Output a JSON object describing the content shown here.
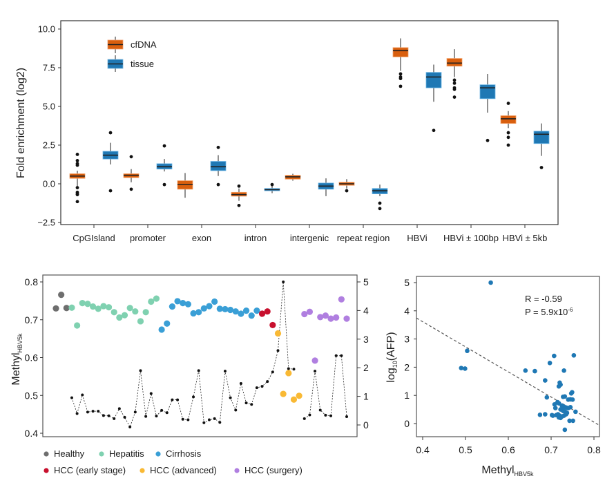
{
  "chart_data": [
    {
      "type": "box",
      "title": "",
      "xlabel": "",
      "ylabel": "Fold enrichment (log2)",
      "ylim": [
        -2.5,
        10.0
      ],
      "yticks": [
        "10.0",
        "7.5",
        "5.0",
        "2.5",
        "0.0",
        "−2.5"
      ],
      "ytick_values": [
        10.0,
        7.5,
        5.0,
        2.5,
        0.0,
        -2.5
      ],
      "grid": false,
      "legend_position": "top-left",
      "categories": [
        "CpGIsland",
        "promoter",
        "exon",
        "intron",
        "intergenic",
        "repeat region",
        "HBVi",
        "HBVi ± 100bp",
        "HBVi ± 5kb"
      ],
      "series": [
        {
          "name": "cfDNA",
          "color": "#d95f0e",
          "boxes": [
            {
              "whisker_low": -0.3,
              "q1": 0.35,
              "median": 0.5,
              "q3": 0.65,
              "whisker_high": 0.85,
              "outliers": [
                1.9,
                1.5,
                1.3,
                1.2,
                -0.25,
                -0.55,
                -0.65,
                -0.7,
                -1.15
              ]
            },
            {
              "whisker_low": 0.1,
              "q1": 0.4,
              "median": 0.55,
              "q3": 0.65,
              "whisker_high": 0.95,
              "outliers": [
                1.75,
                -0.35
              ]
            },
            {
              "whisker_low": -0.9,
              "q1": -0.35,
              "median": -0.05,
              "q3": 0.2,
              "whisker_high": 0.7,
              "outliers": []
            },
            {
              "whisker_low": -1.1,
              "q1": -0.8,
              "median": -0.7,
              "q3": -0.55,
              "whisker_high": -0.3,
              "outliers": [
                -0.15,
                -1.4
              ]
            },
            {
              "whisker_low": 0.2,
              "q1": 0.3,
              "median": 0.45,
              "q3": 0.55,
              "whisker_high": 0.65,
              "outliers": []
            },
            {
              "whisker_low": -0.3,
              "q1": -0.1,
              "median": 0.0,
              "q3": 0.1,
              "whisker_high": 0.3,
              "outliers": [
                -0.45
              ]
            },
            {
              "whisker_low": 7.3,
              "q1": 8.2,
              "median": 8.6,
              "q3": 8.8,
              "whisker_high": 9.4,
              "outliers": [
                7.1,
                6.9,
                6.8,
                6.3
              ]
            },
            {
              "whisker_low": 6.9,
              "q1": 7.6,
              "median": 7.8,
              "q3": 8.1,
              "whisker_high": 8.7,
              "outliers": [
                6.7,
                6.5,
                6.2,
                6.1,
                5.6
              ]
            },
            {
              "whisker_low": 3.6,
              "q1": 3.9,
              "median": 4.2,
              "q3": 4.4,
              "whisker_high": 4.7,
              "outliers": [
                5.2,
                3.3,
                3.0,
                2.5
              ]
            }
          ]
        },
        {
          "name": "tissue",
          "color": "#1f78b4",
          "boxes": [
            {
              "whisker_low": 1.25,
              "q1": 1.6,
              "median": 1.85,
              "q3": 2.1,
              "whisker_high": 2.65,
              "outliers": [
                3.3,
                -0.45
              ]
            },
            {
              "whisker_low": 0.8,
              "q1": 0.95,
              "median": 1.1,
              "q3": 1.3,
              "whisker_high": 1.6,
              "outliers": [
                2.45,
                -0.05
              ]
            },
            {
              "whisker_low": 0.5,
              "q1": 0.85,
              "median": 1.1,
              "q3": 1.45,
              "whisker_high": 1.85,
              "outliers": [
                2.35,
                -0.05
              ]
            },
            {
              "whisker_low": -0.6,
              "q1": -0.45,
              "median": -0.38,
              "q3": -0.3,
              "whisker_high": -0.15,
              "outliers": [
                -0.05
              ]
            },
            {
              "whisker_low": -0.8,
              "q1": -0.35,
              "median": -0.15,
              "q3": 0.05,
              "whisker_high": 0.35,
              "outliers": []
            },
            {
              "whisker_low": -0.8,
              "q1": -0.65,
              "median": -0.45,
              "q3": -0.3,
              "whisker_high": -0.05,
              "outliers": [
                -1.25,
                -1.6
              ]
            },
            {
              "whisker_low": 5.3,
              "q1": 6.2,
              "median": 6.9,
              "q3": 7.2,
              "whisker_high": 7.7,
              "outliers": [
                3.45
              ]
            },
            {
              "whisker_low": 4.6,
              "q1": 5.5,
              "median": 6.2,
              "q3": 6.4,
              "whisker_high": 7.1,
              "outliers": [
                2.8
              ]
            },
            {
              "whisker_low": 1.8,
              "q1": 2.6,
              "median": 3.2,
              "q3": 3.4,
              "whisker_high": 3.9,
              "outliers": [
                1.05
              ]
            }
          ]
        }
      ]
    },
    {
      "type": "scatter",
      "title": "",
      "ylabel": "Methyl",
      "ylabel_subscript": "HBV5k",
      "ylim": [
        0.4,
        0.8
      ],
      "yticks": [
        "0.8",
        "0.7",
        "0.6",
        "0.5",
        "0.4"
      ],
      "ytick_values": [
        0.8,
        0.7,
        0.6,
        0.5,
        0.4
      ],
      "y2lim": [
        0,
        5
      ],
      "y2ticks": [
        "5",
        "4",
        "3",
        "2",
        "1",
        "0"
      ],
      "y2tick_values": [
        5,
        4,
        3,
        2,
        1,
        0
      ],
      "grid": false,
      "legend_position": "bottom",
      "groups": [
        {
          "name": "Healthy",
          "color": "#6e6e6e"
        },
        {
          "name": "Hepatitis",
          "color": "#7fd1b0"
        },
        {
          "name": "Cirrhosis",
          "color": "#3a9fd6"
        },
        {
          "name": "HCC (early stage)",
          "color": "#c8102e"
        },
        {
          "name": "HCC (advanced)",
          "color": "#f9b934"
        },
        {
          "name": "HCC (surgery)",
          "color": "#b07fe0"
        }
      ],
      "samples": [
        {
          "group": 0,
          "methyl": 0.73,
          "afp": null
        },
        {
          "group": 0,
          "methyl": 0.766,
          "afp": null
        },
        {
          "group": 0,
          "methyl": 0.731,
          "afp": null
        },
        {
          "group": 1,
          "methyl": 0.732,
          "afp": 0.95
        },
        {
          "group": 1,
          "methyl": 0.685,
          "afp": 0.4
        },
        {
          "group": 1,
          "methyl": 0.744,
          "afp": 1.05
        },
        {
          "group": 1,
          "methyl": 0.742,
          "afp": 0.45
        },
        {
          "group": 1,
          "methyl": 0.735,
          "afp": 0.48
        },
        {
          "group": 1,
          "methyl": 0.729,
          "afp": 0.48
        },
        {
          "group": 1,
          "methyl": 0.736,
          "afp": 0.33
        },
        {
          "group": 1,
          "methyl": 0.733,
          "afp": 0.32
        },
        {
          "group": 1,
          "methyl": 0.72,
          "afp": 0.22
        },
        {
          "group": 1,
          "methyl": 0.706,
          "afp": 0.57
        },
        {
          "group": 1,
          "methyl": 0.712,
          "afp": 0.27
        },
        {
          "group": 1,
          "methyl": 0.731,
          "afp": -0.07
        },
        {
          "group": 1,
          "methyl": 0.722,
          "afp": 0.45
        },
        {
          "group": 1,
          "methyl": 0.696,
          "afp": 1.9
        },
        {
          "group": 1,
          "methyl": 0.72,
          "afp": 0.3
        },
        {
          "group": 1,
          "methyl": 0.748,
          "afp": 1.1
        },
        {
          "group": 1,
          "methyl": 0.756,
          "afp": 0.31
        },
        {
          "group": 2,
          "methyl": 0.674,
          "afp": 0.51
        },
        {
          "group": 2,
          "methyl": 0.69,
          "afp": 0.43
        },
        {
          "group": 2,
          "methyl": 0.735,
          "afp": 0.88
        },
        {
          "group": 2,
          "methyl": 0.749,
          "afp": 0.88
        },
        {
          "group": 2,
          "methyl": 0.744,
          "afp": 0.2
        },
        {
          "group": 2,
          "methyl": 0.741,
          "afp": 0.18
        },
        {
          "group": 2,
          "methyl": 0.717,
          "afp": 0.98
        },
        {
          "group": 2,
          "methyl": 0.72,
          "afp": 1.9
        },
        {
          "group": 2,
          "methyl": 0.73,
          "afp": 0.08
        },
        {
          "group": 2,
          "methyl": 0.736,
          "afp": 0.18
        },
        {
          "group": 2,
          "methyl": 0.748,
          "afp": 0.22
        },
        {
          "group": 2,
          "methyl": 0.729,
          "afp": 0.09
        },
        {
          "group": 2,
          "methyl": 0.728,
          "afp": 1.88
        },
        {
          "group": 2,
          "methyl": 0.726,
          "afp": 0.95
        },
        {
          "group": 2,
          "methyl": 0.722,
          "afp": 0.52
        },
        {
          "group": 2,
          "methyl": 0.716,
          "afp": 1.45
        },
        {
          "group": 2,
          "methyl": 0.724,
          "afp": 0.77
        },
        {
          "group": 2,
          "methyl": 0.711,
          "afp": 0.72
        },
        {
          "group": 2,
          "methyl": 0.724,
          "afp": 1.3
        },
        {
          "group": 3,
          "methyl": 0.716,
          "afp": 1.35
        },
        {
          "group": 3,
          "methyl": 0.722,
          "afp": 1.52
        },
        {
          "group": 3,
          "methyl": 0.686,
          "afp": 1.85
        },
        {
          "group": 4,
          "methyl": 0.664,
          "afp": 2.6
        },
        {
          "group": 4,
          "methyl": 0.504,
          "afp": 5.0
        },
        {
          "group": 4,
          "methyl": 0.559,
          "afp": 1.97
        },
        {
          "group": 4,
          "methyl": 0.489,
          "afp": 1.95
        },
        {
          "group": 4,
          "methyl": 0.499,
          "afp": null
        },
        {
          "group": 5,
          "methyl": 0.715,
          "afp": 0.22
        },
        {
          "group": 5,
          "methyl": 0.721,
          "afp": 0.35
        },
        {
          "group": 5,
          "methyl": 0.592,
          "afp": 1.88
        },
        {
          "group": 5,
          "methyl": 0.707,
          "afp": 0.52
        },
        {
          "group": 5,
          "methyl": 0.711,
          "afp": 0.34
        },
        {
          "group": 5,
          "methyl": 0.703,
          "afp": 0.32
        },
        {
          "group": 5,
          "methyl": 0.706,
          "afp": 2.42
        },
        {
          "group": 5,
          "methyl": 0.754,
          "afp": 2.42
        },
        {
          "group": 5,
          "methyl": 0.703,
          "afp": 0.29
        }
      ],
      "afp_series_label": "log10(AFP)",
      "afp_line_style": "dotted"
    },
    {
      "type": "scatter",
      "title": "",
      "xlabel": "Methyl",
      "xlabel_subscript": "HBV5k",
      "ylabel": "log",
      "ylabel_subscript": "10",
      "ylabel_suffix": "(AFP)",
      "xlim": [
        0.385,
        0.815
      ],
      "ylim": [
        -0.4,
        5.2
      ],
      "xticks": [
        "0.4",
        "0.5",
        "0.6",
        "0.7",
        "0.8"
      ],
      "xtick_values": [
        0.4,
        0.5,
        0.6,
        0.7,
        0.8
      ],
      "yticks": [
        "5",
        "4",
        "3",
        "2",
        "1",
        "0"
      ],
      "ytick_values": [
        5,
        4,
        3,
        2,
        1,
        0
      ],
      "grid": false,
      "point_color": "#1f78b4",
      "annotation": {
        "r_label": "R = -0.59",
        "p_label": "P = 5.9x10",
        "p_exponent": "-6"
      },
      "regression": {
        "slope": -8.85,
        "intercept": 7.15,
        "style": "dashed"
      },
      "points": [
        [
          0.559,
          5.0
        ],
        [
          0.504,
          2.58
        ],
        [
          0.49,
          1.97
        ],
        [
          0.499,
          1.95
        ],
        [
          0.64,
          1.88
        ],
        [
          0.662,
          1.86
        ],
        [
          0.686,
          1.53
        ],
        [
          0.69,
          0.93
        ],
        [
          0.697,
          2.15
        ],
        [
          0.707,
          2.4
        ],
        [
          0.753,
          2.42
        ],
        [
          0.73,
          1.88
        ],
        [
          0.72,
          1.45
        ],
        [
          0.722,
          1.38
        ],
        [
          0.718,
          1.32
        ],
        [
          0.728,
          0.95
        ],
        [
          0.732,
          0.96
        ],
        [
          0.747,
          1.07
        ],
        [
          0.749,
          1.11
        ],
        [
          0.745,
          0.86
        ],
        [
          0.75,
          0.85
        ],
        [
          0.715,
          0.76
        ],
        [
          0.708,
          0.68
        ],
        [
          0.718,
          0.72
        ],
        [
          0.725,
          0.64
        ],
        [
          0.73,
          0.6
        ],
        [
          0.735,
          0.57
        ],
        [
          0.74,
          0.55
        ],
        [
          0.745,
          0.58
        ],
        [
          0.757,
          0.42
        ],
        [
          0.71,
          0.55
        ],
        [
          0.722,
          0.5
        ],
        [
          0.728,
          0.45
        ],
        [
          0.733,
          0.42
        ],
        [
          0.737,
          0.38
        ],
        [
          0.716,
          0.33
        ],
        [
          0.712,
          0.3
        ],
        [
          0.72,
          0.28
        ],
        [
          0.725,
          0.25
        ],
        [
          0.73,
          0.28
        ],
        [
          0.735,
          0.33
        ],
        [
          0.718,
          0.22
        ],
        [
          0.722,
          0.2
        ],
        [
          0.702,
          0.3
        ],
        [
          0.704,
          0.28
        ],
        [
          0.674,
          0.31
        ],
        [
          0.686,
          0.33
        ],
        [
          0.743,
          0.1
        ],
        [
          0.751,
          0.1
        ],
        [
          0.732,
          -0.22
        ],
        [
          0.726,
          0.52
        ],
        [
          0.74,
          0.85
        ]
      ]
    }
  ]
}
